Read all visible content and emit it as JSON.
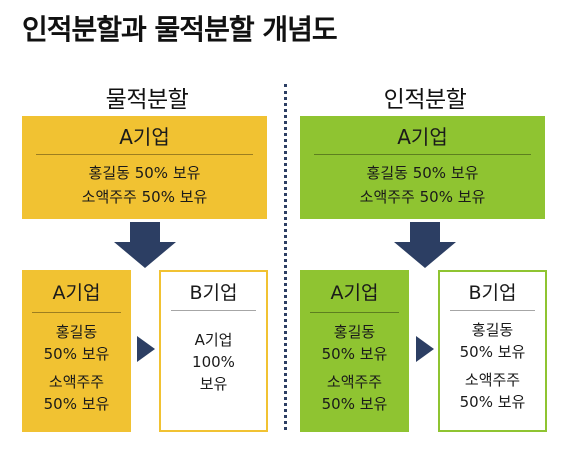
{
  "title": "인적분할과 물적분할 개념도",
  "colors": {
    "physical": "#f1c232",
    "personal": "#8fc431",
    "arrow": "#2c3e63"
  },
  "physical": {
    "heading": "물적분할",
    "top": {
      "name": "A기업",
      "lines": [
        "홍길동 50% 보유",
        "소액주주 50% 보유"
      ]
    },
    "left": {
      "name": "A기업",
      "lines": [
        "홍길동",
        "50% 보유",
        "소액주주",
        "50% 보유"
      ]
    },
    "right": {
      "name": "B기업",
      "lines": [
        "A기업",
        "100%",
        "보유"
      ]
    }
  },
  "personal": {
    "heading": "인적분할",
    "top": {
      "name": "A기업",
      "lines": [
        "홍길동 50% 보유",
        "소액주주 50% 보유"
      ]
    },
    "left": {
      "name": "A기업",
      "lines": [
        "홍길동",
        "50% 보유",
        "소액주주",
        "50% 보유"
      ]
    },
    "right": {
      "name": "B기업",
      "lines": [
        "홍길동",
        "50% 보유",
        "소액주주",
        "50% 보유"
      ]
    }
  }
}
